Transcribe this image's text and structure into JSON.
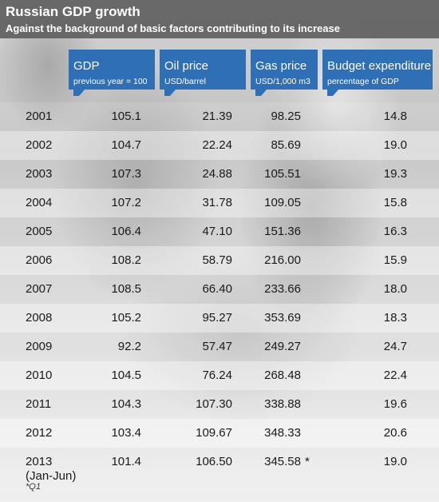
{
  "title": "Russian GDP growth",
  "subtitle": "Against the background of basic factors contributing to its increase",
  "columns": [
    {
      "label": "GDP",
      "unit": "previous year = 100"
    },
    {
      "label": "Oil price",
      "unit": "USD/barrel"
    },
    {
      "label": "Gas price",
      "unit": "USD/1,000 m3"
    },
    {
      "label": "Budget expenditure",
      "unit": "percentage of GDP"
    }
  ],
  "colors": {
    "header_blue": "#2e6fb5",
    "title_bar": "#5f5f5f"
  },
  "chart_data": {
    "type": "table",
    "title": "Russian GDP growth",
    "subtitle": "Against the background of basic factors contributing to its increase",
    "columns": [
      "GDP previous year = 100",
      "Oil price USD/barrel",
      "Gas price USD/1,000 m3",
      "Budget expenditure percentage of GDP"
    ],
    "rows": [
      {
        "year": "2001",
        "year_sub": "",
        "gdp": "105.1",
        "oil": "21.39",
        "gas": "98.25",
        "note": "",
        "budget": "14.8"
      },
      {
        "year": "2002",
        "year_sub": "",
        "gdp": "104.7",
        "oil": "22.24",
        "gas": "85.69",
        "note": "",
        "budget": "19.0"
      },
      {
        "year": "2003",
        "year_sub": "",
        "gdp": "107.3",
        "oil": "24.88",
        "gas": "105.51",
        "note": "",
        "budget": "19.3"
      },
      {
        "year": "2004",
        "year_sub": "",
        "gdp": "107.2",
        "oil": "31.78",
        "gas": "109.05",
        "note": "",
        "budget": "15.8"
      },
      {
        "year": "2005",
        "year_sub": "",
        "gdp": "106.4",
        "oil": "47.10",
        "gas": "151.36",
        "note": "",
        "budget": "16.3"
      },
      {
        "year": "2006",
        "year_sub": "",
        "gdp": "108.2",
        "oil": "58.79",
        "gas": "216.00",
        "note": "",
        "budget": "15.9"
      },
      {
        "year": "2007",
        "year_sub": "",
        "gdp": "108.5",
        "oil": "66.40",
        "gas": "233.66",
        "note": "",
        "budget": "18.0"
      },
      {
        "year": "2008",
        "year_sub": "",
        "gdp": "105.2",
        "oil": "95.27",
        "gas": "353.69",
        "note": "",
        "budget": "18.3"
      },
      {
        "year": "2009",
        "year_sub": "",
        "gdp": "92.2",
        "oil": "57.47",
        "gas": "249.27",
        "note": "",
        "budget": "24.7"
      },
      {
        "year": "2010",
        "year_sub": "",
        "gdp": "104.5",
        "oil": "76.24",
        "gas": "268.48",
        "note": "",
        "budget": "22.4"
      },
      {
        "year": "2011",
        "year_sub": "",
        "gdp": "104.3",
        "oil": "107.30",
        "gas": "338.88",
        "note": "",
        "budget": "19.6"
      },
      {
        "year": "2012",
        "year_sub": "",
        "gdp": "103.4",
        "oil": "109.67",
        "gas": "348.33",
        "note": "",
        "budget": "20.6"
      },
      {
        "year": "2013",
        "year_sub": "(Jan-Jun)",
        "gdp": "101.4",
        "oil": "106.50",
        "gas": "345.58",
        "note": "*",
        "budget": "19.0"
      }
    ]
  },
  "footnote": "*Q1"
}
